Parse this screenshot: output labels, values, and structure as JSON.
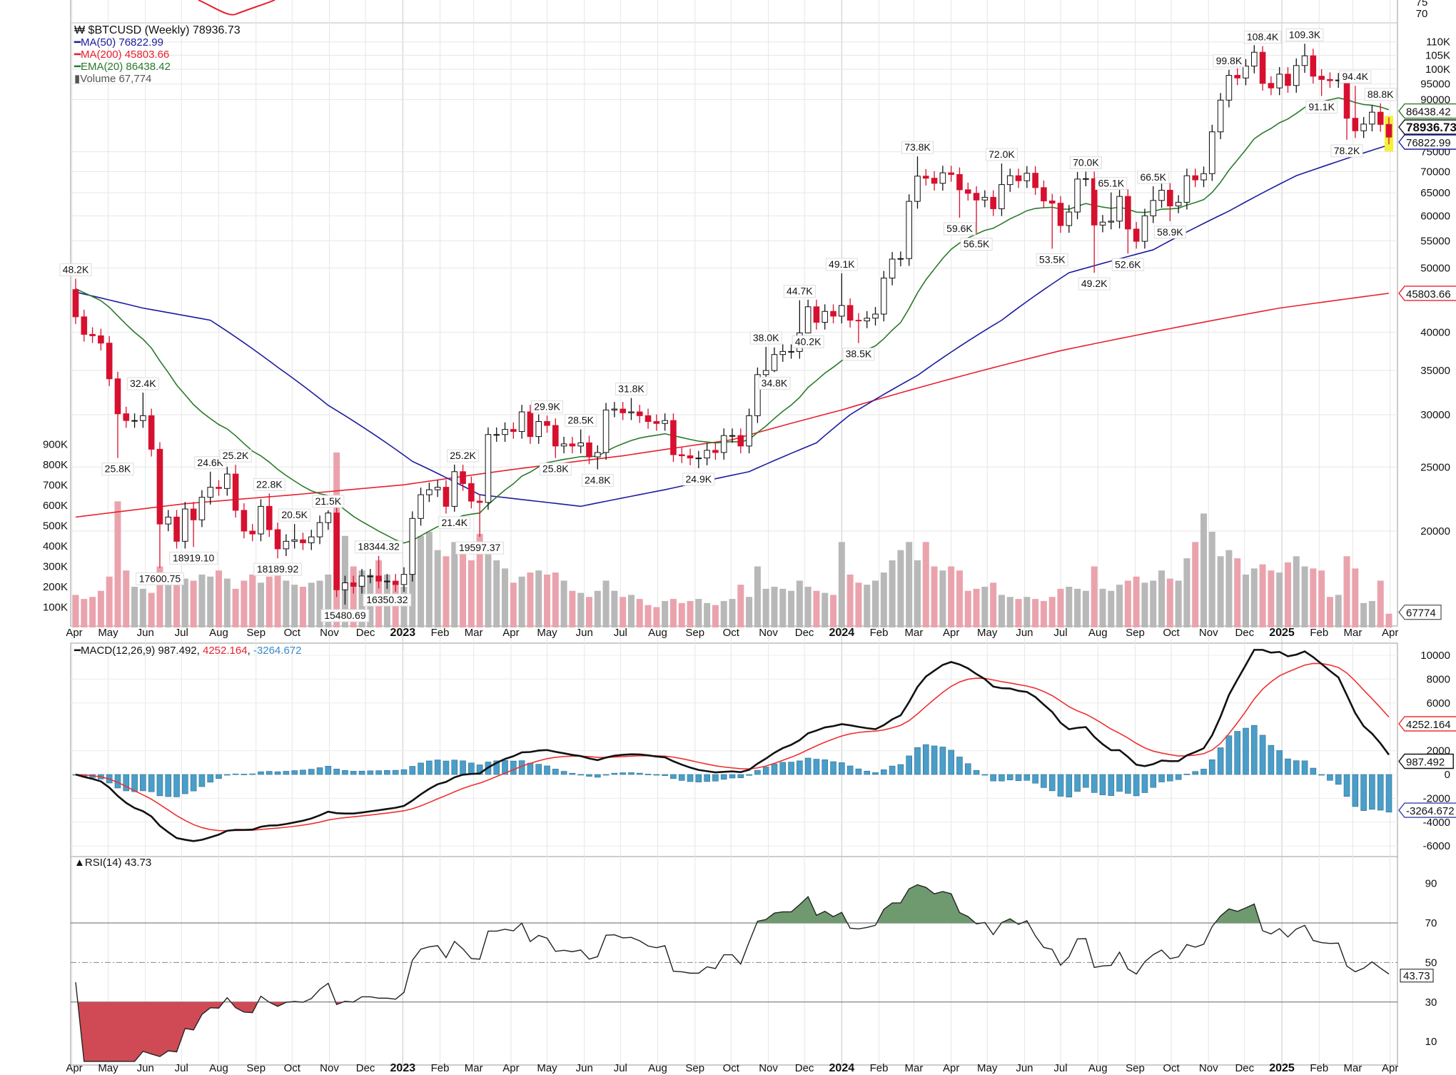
{
  "header": {
    "symbol_line": "$BTCUSD (Weekly) 78936.73",
    "ma50": "MA(50) 76822.99",
    "ma200": "MA(200) 45803.66",
    "ema20": "EMA(20) 86438.42",
    "volume": "Volume 67,774"
  },
  "colors": {
    "ma50": "#1c1c9e",
    "ma200": "#e8202e",
    "ema20": "#2a7a2a",
    "down": "#d6102e",
    "up": "#ffffff",
    "vol_down": "#eaa3ad",
    "vol_up": "#b8b8b8",
    "macd": "#111111",
    "signal": "#f03030",
    "hist": "#4a9ec8",
    "rsi_fill": "#6f9a6f",
    "rsi_low_fill": "#d04a55",
    "highlight": "#f5f03a"
  },
  "chart_data": [
    {
      "type": "candlestick",
      "title": "$BTCUSD (Weekly)",
      "y_scale": "log",
      "grid": true,
      "first_open": 46400,
      "closes": [
        42200,
        39700,
        39500,
        38500,
        34000,
        30100,
        29400,
        29400,
        29900,
        26600,
        20500,
        21000,
        19300,
        21600,
        20800,
        22500,
        23300,
        23200,
        24400,
        21500,
        20000,
        19800,
        21800,
        20100,
        18800,
        19300,
        19400,
        19200,
        19600,
        20600,
        21300,
        16300,
        16700,
        16500,
        17100,
        17100,
        16800,
        16800,
        16600,
        17200,
        20900,
        22700,
        23100,
        23300,
        21800,
        24600,
        23600,
        22200,
        22100,
        28000,
        28000,
        28500,
        28300,
        30300,
        27800,
        29300,
        28900,
        26900,
        27100,
        26900,
        27200,
        25900,
        26300,
        30500,
        30600,
        30200,
        30300,
        29900,
        29300,
        29100,
        29400,
        26100,
        26000,
        25800,
        25800,
        26500,
        26300,
        27900,
        27900,
        26900,
        29900,
        34500,
        35000,
        37000,
        37400,
        37400,
        39900,
        43700,
        41400,
        43000,
        42300,
        43900,
        41700,
        41600,
        42000,
        42600,
        48300,
        51600,
        51700,
        63100,
        68900,
        68400,
        67200,
        69700,
        69300,
        65700,
        64900,
        63400,
        64000,
        61500,
        66900,
        69000,
        67800,
        69600,
        66200,
        63200,
        62700,
        58000,
        60800,
        68200,
        68300,
        58100,
        58700,
        58900,
        64200,
        57300,
        54900,
        60000,
        63300,
        65600,
        62100,
        62900,
        69000,
        68000,
        69500,
        80400,
        89800,
        97900,
        97000,
        101100,
        106100,
        95200,
        93700,
        98300,
        94500,
        101300,
        104800,
        97600,
        96500,
        96100,
        96300,
        84300,
        80700,
        82600,
        86100,
        82500,
        78936.73
      ],
      "volume": [
        160000,
        140000,
        150000,
        180000,
        250000,
        620000,
        280000,
        200000,
        190000,
        170000,
        300000,
        270000,
        260000,
        240000,
        230000,
        260000,
        250000,
        280000,
        240000,
        190000,
        230000,
        260000,
        220000,
        250000,
        280000,
        230000,
        210000,
        200000,
        220000,
        230000,
        260000,
        860000,
        450000,
        300000,
        280000,
        260000,
        330000,
        260000,
        220000,
        200000,
        430000,
        450000,
        470000,
        380000,
        350000,
        420000,
        400000,
        330000,
        460000,
        400000,
        330000,
        290000,
        220000,
        250000,
        270000,
        280000,
        260000,
        270000,
        230000,
        180000,
        170000,
        150000,
        180000,
        230000,
        180000,
        150000,
        160000,
        140000,
        110000,
        100000,
        130000,
        140000,
        120000,
        130000,
        140000,
        120000,
        110000,
        130000,
        140000,
        210000,
        150000,
        300000,
        190000,
        200000,
        190000,
        180000,
        230000,
        200000,
        180000,
        170000,
        160000,
        420000,
        260000,
        220000,
        210000,
        230000,
        270000,
        330000,
        380000,
        420000,
        330000,
        420000,
        300000,
        280000,
        300000,
        280000,
        180000,
        190000,
        200000,
        220000,
        160000,
        150000,
        140000,
        150000,
        140000,
        130000,
        150000,
        190000,
        200000,
        190000,
        180000,
        300000,
        190000,
        180000,
        210000,
        230000,
        250000,
        220000,
        230000,
        280000,
        240000,
        230000,
        340000,
        420000,
        560000,
        470000,
        350000,
        380000,
        340000,
        260000,
        290000,
        310000,
        280000,
        270000,
        320000,
        350000,
        300000,
        290000,
        280000,
        150000,
        160000,
        350000,
        290000,
        120000,
        130000,
        230000,
        67774
      ],
      "ma50": [
        [
          0,
          46000
        ],
        [
          8,
          43500
        ],
        [
          16,
          41700
        ],
        [
          24,
          35400
        ],
        [
          30,
          31000
        ],
        [
          40,
          25500
        ],
        [
          48,
          22700
        ],
        [
          60,
          21800
        ],
        [
          70,
          23100
        ],
        [
          80,
          24600
        ],
        [
          88,
          27200
        ],
        [
          92,
          30000
        ],
        [
          100,
          34400
        ],
        [
          110,
          41700
        ],
        [
          118,
          49200
        ],
        [
          128,
          53300
        ],
        [
          137,
          61000
        ],
        [
          145,
          69000
        ],
        [
          156,
          76822.99
        ]
      ],
      "ma200": [
        [
          0,
          21000
        ],
        [
          13,
          22000
        ],
        [
          26,
          22700
        ],
        [
          39,
          23500
        ],
        [
          52,
          24800
        ],
        [
          65,
          26000
        ],
        [
          78,
          27500
        ],
        [
          91,
          30500
        ],
        [
          104,
          34000
        ],
        [
          117,
          37500
        ],
        [
          130,
          40500
        ],
        [
          143,
          43500
        ],
        [
          156,
          45803.66
        ]
      ],
      "ema20_seed": 47000,
      "annotations": [
        {
          "w": 0,
          "t": "48.2K",
          "hi": 48200
        },
        {
          "w": 8,
          "t": "32.4K",
          "hi": 32400
        },
        {
          "w": 5,
          "t": "25.8K",
          "lo": 25800
        },
        {
          "w": 16,
          "t": "24.6K",
          "hi": 24600
        },
        {
          "w": 19,
          "t": "25.2K",
          "hi": 25200
        },
        {
          "w": 14,
          "t": "18919.10",
          "lo": 18919.1
        },
        {
          "w": 10,
          "t": "17600.75",
          "lo": 17600.75
        },
        {
          "w": 23,
          "t": "22.8K",
          "hi": 22800
        },
        {
          "w": 24,
          "t": "18189.92",
          "lo": 18189.92
        },
        {
          "w": 26,
          "t": "20.5K",
          "hi": 20500
        },
        {
          "w": 30,
          "t": "21.5K",
          "hi": 21500
        },
        {
          "w": 36,
          "t": "18344.32",
          "hi": 18344.32
        },
        {
          "w": 32,
          "t": "15480.69",
          "lo": 15480.69
        },
        {
          "w": 37,
          "t": "16350.32",
          "lo": 16350.32
        },
        {
          "w": 46,
          "t": "25.2K",
          "hi": 25200
        },
        {
          "w": 45,
          "t": "21.4K",
          "lo": 21400
        },
        {
          "w": 48,
          "t": "19597.37",
          "lo": 19597.37
        },
        {
          "w": 56,
          "t": "29.9K",
          "hi": 29900
        },
        {
          "w": 57,
          "t": "25.8K",
          "lo": 25800
        },
        {
          "w": 60,
          "t": "28.5K",
          "hi": 28500
        },
        {
          "w": 62,
          "t": "24.8K",
          "lo": 24800
        },
        {
          "w": 66,
          "t": "31.8K",
          "hi": 31800
        },
        {
          "w": 74,
          "t": "24.9K",
          "lo": 24900
        },
        {
          "w": 82,
          "t": "38.0K",
          "hi": 38000
        },
        {
          "w": 83,
          "t": "34.8K",
          "lo": 34800
        },
        {
          "w": 86,
          "t": "44.7K",
          "hi": 44700
        },
        {
          "w": 87,
          "t": "40.2K",
          "lo": 40200
        },
        {
          "w": 91,
          "t": "49.1K",
          "hi": 49100
        },
        {
          "w": 93,
          "t": "38.5K",
          "lo": 38500
        },
        {
          "w": 100,
          "t": "73.8K",
          "hi": 73800
        },
        {
          "w": 105,
          "t": "59.6K",
          "lo": 59600
        },
        {
          "w": 107,
          "t": "56.5K",
          "lo": 56500
        },
        {
          "w": 110,
          "t": "72.0K",
          "hi": 72000
        },
        {
          "w": 116,
          "t": "53.5K",
          "lo": 53500
        },
        {
          "w": 120,
          "t": "70.0K",
          "hi": 70000
        },
        {
          "w": 121,
          "t": "49.2K",
          "lo": 49200
        },
        {
          "w": 123,
          "t": "65.1K",
          "hi": 65100
        },
        {
          "w": 125,
          "t": "52.6K",
          "lo": 52600
        },
        {
          "w": 128,
          "t": "66.5K",
          "hi": 66500
        },
        {
          "w": 130,
          "t": "58.9K",
          "lo": 58900
        },
        {
          "w": 137,
          "t": "99.8K",
          "hi": 99800
        },
        {
          "w": 141,
          "t": "108.4K",
          "hi": 108400
        },
        {
          "w": 146,
          "t": "109.3K",
          "hi": 109300
        },
        {
          "w": 148,
          "t": "91.1K",
          "lo": 91100
        },
        {
          "w": 152,
          "t": "94.4K",
          "hi": 94400
        },
        {
          "w": 151,
          "t": "78.2K",
          "lo": 78200
        },
        {
          "w": 155,
          "t": "88.8K",
          "hi": 88800
        }
      ],
      "y_ticks": [
        {
          "v": 110000,
          "t": "110K"
        },
        {
          "v": 105000,
          "t": "105K"
        },
        {
          "v": 100000,
          "t": "100K"
        },
        {
          "v": 95000,
          "t": "95000"
        },
        {
          "v": 90000,
          "t": "90000"
        },
        {
          "v": 75000,
          "t": "75000"
        },
        {
          "v": 70000,
          "t": "70000"
        },
        {
          "v": 65000,
          "t": "65000"
        },
        {
          "v": 60000,
          "t": "60000"
        },
        {
          "v": 55000,
          "t": "55000"
        },
        {
          "v": 50000,
          "t": "50000"
        },
        {
          "v": 40000,
          "t": "40000"
        },
        {
          "v": 35000,
          "t": "35000"
        },
        {
          "v": 30000,
          "t": "30000"
        },
        {
          "v": 25000,
          "t": "25000"
        },
        {
          "v": 20000,
          "t": "20000"
        }
      ],
      "volume_ticks": [
        {
          "v": 100000,
          "t": "100K"
        },
        {
          "v": 200000,
          "t": "200K"
        },
        {
          "v": 300000,
          "t": "300K"
        },
        {
          "v": 400000,
          "t": "400K"
        },
        {
          "v": 500000,
          "t": "500K"
        },
        {
          "v": 600000,
          "t": "600K"
        },
        {
          "v": 700000,
          "t": "700K"
        },
        {
          "v": 800000,
          "t": "800K"
        },
        {
          "v": 900000,
          "t": "900K"
        }
      ],
      "value_tags": [
        {
          "t": "86438.42",
          "v": 86438.42,
          "key": "ema20"
        },
        {
          "t": "78936.73",
          "v": 78936.73,
          "key": "last"
        },
        {
          "t": "76822.99",
          "v": 76822.99,
          "key": "ma50"
        },
        {
          "t": "45803.66",
          "v": 45803.66,
          "key": "ma200"
        }
      ],
      "volume_tag": "67774",
      "top_residual_ticks": [
        "75",
        "70"
      ]
    },
    {
      "type": "macd",
      "legend": {
        "name": "MACD(12,26,9)",
        "macd": "987.492",
        "signal": "4252.164",
        "hist": "-3264.672"
      },
      "y_ticks": [
        10000,
        8000,
        6000,
        2000,
        0,
        -2000,
        -4000,
        -6000
      ],
      "last": {
        "macd": 987.492,
        "signal": 4252.164,
        "hist": -3264.672
      }
    },
    {
      "type": "rsi",
      "legend": "RSI(14) 43.73",
      "last_tag": "43.73",
      "y_ticks": [
        90,
        70,
        50,
        30,
        10
      ],
      "levels": [
        70,
        50,
        30
      ]
    }
  ],
  "x_axis": {
    "labels": [
      "Apr",
      "May",
      "Jun",
      "Jul",
      "Aug",
      "Sep",
      "Oct",
      "Nov",
      "Dec",
      "2023",
      "Feb",
      "Mar",
      "Apr",
      "May",
      "Jun",
      "Jul",
      "Aug",
      "Sep",
      "Oct",
      "Nov",
      "Dec",
      "2024",
      "Feb",
      "Mar",
      "Apr",
      "May",
      "Jun",
      "Jul",
      "Aug",
      "Sep",
      "Oct",
      "Nov",
      "Dec",
      "2025",
      "Feb",
      "Mar",
      "Apr"
    ],
    "bold": [
      "2023",
      "2024",
      "2025"
    ]
  }
}
